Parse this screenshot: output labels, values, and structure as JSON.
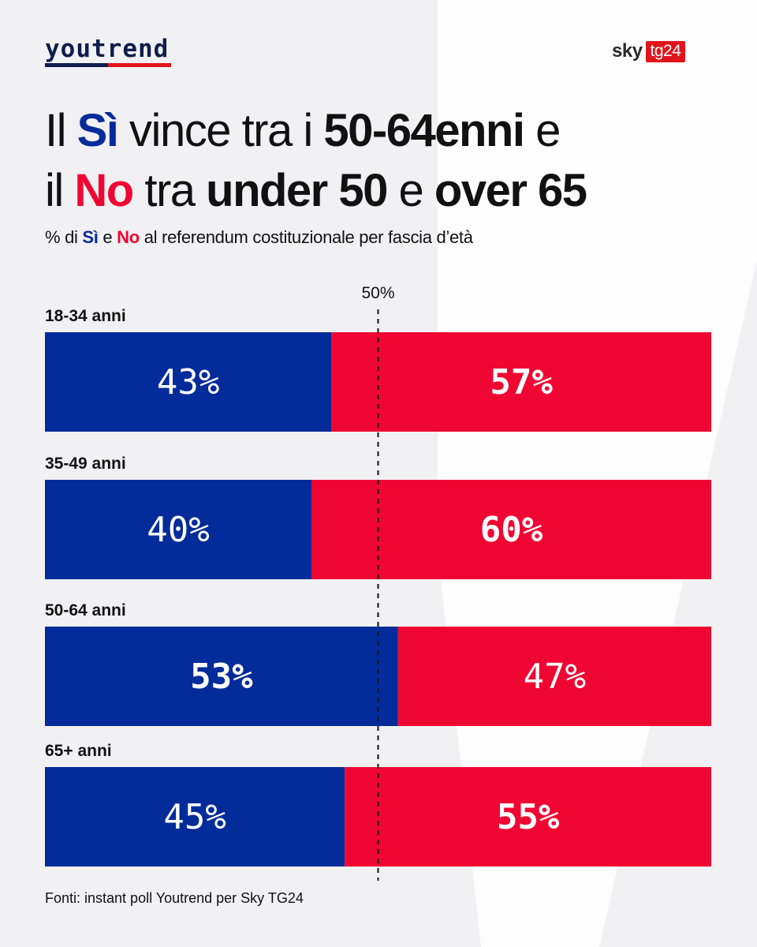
{
  "brand": {
    "left_logo": "youtrend",
    "right_logo_part1": "sky",
    "right_logo_part2": "tg24"
  },
  "headline": {
    "line1": [
      "Il ",
      "Sì",
      " vince tra i ",
      "50-64enni",
      " e"
    ],
    "line2": [
      "il ",
      "No",
      " tra ",
      "under 50",
      " e ",
      "over 65"
    ]
  },
  "subtitle": {
    "pre": "% di ",
    "yes": "Sì",
    "mid": " e ",
    "no": "No",
    "post": " al referendum costituzionale per fascia d’età"
  },
  "colors": {
    "yes": "#042b9a",
    "no": "#f00632",
    "background": "#f1f1f3",
    "text": "#111111"
  },
  "chart_data": {
    "type": "bar",
    "orientation": "horizontal-stacked-100",
    "title": "% di Sì e No al referendum costituzionale per fascia d’età",
    "reference_line": {
      "value": 50,
      "label": "50%"
    },
    "categories": [
      "18-34 anni",
      "35-49 anni",
      "50-64 anni",
      "65+ anni"
    ],
    "series": [
      {
        "name": "Sì",
        "values": [
          43,
          40,
          53,
          45
        ]
      },
      {
        "name": "No",
        "values": [
          57,
          60,
          47,
          55
        ]
      }
    ],
    "value_labels": {
      "Sì": [
        "43%",
        "40%",
        "53%",
        "45%"
      ],
      "No": [
        "57%",
        "60%",
        "47%",
        "55%"
      ]
    },
    "winner": [
      "No",
      "No",
      "Sì",
      "No"
    ],
    "xlim": [
      0,
      100
    ]
  },
  "footer": "Fonti: instant poll Youtrend per Sky TG24"
}
